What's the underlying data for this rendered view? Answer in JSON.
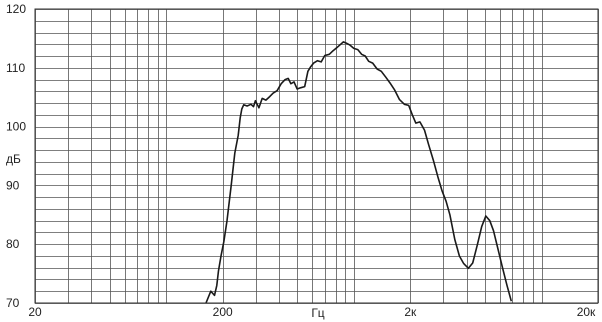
{
  "chart_data": {
    "type": "line",
    "title": "",
    "xlabel": "Гц",
    "ylabel": "дБ",
    "xscale": "log",
    "xlim": [
      20,
      20000
    ],
    "ylim": [
      70,
      120
    ],
    "grid": true,
    "x_tick_labels": [
      {
        "value": 20,
        "label": "20"
      },
      {
        "value": 200,
        "label": "200"
      },
      {
        "value": 2000,
        "label": "2к"
      },
      {
        "value": 20000,
        "label": "20к"
      }
    ],
    "y_tick_labels": [
      {
        "value": 70,
        "label": "70"
      },
      {
        "value": 80,
        "label": "80"
      },
      {
        "value": 90,
        "label": "90"
      },
      {
        "value": 100,
        "label": "100"
      },
      {
        "value": 110,
        "label": "110"
      },
      {
        "value": 120,
        "label": "120"
      }
    ],
    "series": [
      {
        "color": "#1a1a1a",
        "points": [
          [
            163,
            70
          ],
          [
            173,
            72
          ],
          [
            181,
            71.3
          ],
          [
            186,
            73
          ],
          [
            190,
            75.5
          ],
          [
            196,
            78
          ],
          [
            203,
            80.5
          ],
          [
            211,
            84
          ],
          [
            222,
            90
          ],
          [
            232,
            95.5
          ],
          [
            242,
            98.5
          ],
          [
            248,
            101.5
          ],
          [
            253,
            103
          ],
          [
            259,
            103.7
          ],
          [
            270,
            103.5
          ],
          [
            283,
            103.8
          ],
          [
            292,
            103.4
          ],
          [
            299,
            104.4
          ],
          [
            312,
            103.2
          ],
          [
            325,
            104.8
          ],
          [
            340,
            104.5
          ],
          [
            356,
            105.1
          ],
          [
            372,
            105.7
          ],
          [
            390,
            106.1
          ],
          [
            410,
            107.3
          ],
          [
            430,
            108.0
          ],
          [
            447,
            108.2
          ],
          [
            462,
            107.3
          ],
          [
            480,
            107.6
          ],
          [
            499,
            106.4
          ],
          [
            520,
            106.6
          ],
          [
            547,
            106.8
          ],
          [
            569,
            109.4
          ],
          [
            590,
            110.2
          ],
          [
            610,
            110.8
          ],
          [
            640,
            111.2
          ],
          [
            670,
            111.0
          ],
          [
            700,
            112.1
          ],
          [
            740,
            112.3
          ],
          [
            775,
            112.9
          ],
          [
            810,
            113.4
          ],
          [
            850,
            114.0
          ],
          [
            880,
            114.4
          ],
          [
            910,
            114.2
          ],
          [
            950,
            113.9
          ],
          [
            1000,
            113.3
          ],
          [
            1050,
            113.1
          ],
          [
            1100,
            112.3
          ],
          [
            1150,
            112.0
          ],
          [
            1200,
            111.1
          ],
          [
            1260,
            110.8
          ],
          [
            1330,
            109.8
          ],
          [
            1400,
            109.4
          ],
          [
            1480,
            108.4
          ],
          [
            1560,
            107.4
          ],
          [
            1650,
            106.2
          ],
          [
            1750,
            104.6
          ],
          [
            1860,
            103.8
          ],
          [
            1960,
            103.6
          ],
          [
            2050,
            102.0
          ],
          [
            2140,
            100.6
          ],
          [
            2250,
            100.8
          ],
          [
            2380,
            99.4
          ],
          [
            2500,
            97.0
          ],
          [
            2650,
            94.3
          ],
          [
            2800,
            91.5
          ],
          [
            2950,
            89.1
          ],
          [
            3100,
            87.3
          ],
          [
            3250,
            85.0
          ],
          [
            3450,
            80.8
          ],
          [
            3650,
            78.0
          ],
          [
            3850,
            76.7
          ],
          [
            4080,
            75.9
          ],
          [
            4300,
            76.8
          ],
          [
            4560,
            80.0
          ],
          [
            4800,
            83.0
          ],
          [
            5050,
            84.8
          ],
          [
            5300,
            84.0
          ],
          [
            5550,
            82.3
          ],
          [
            5850,
            79.3
          ],
          [
            6200,
            76.0
          ],
          [
            6550,
            73.0
          ],
          [
            6900,
            70.3
          ]
        ]
      }
    ]
  }
}
